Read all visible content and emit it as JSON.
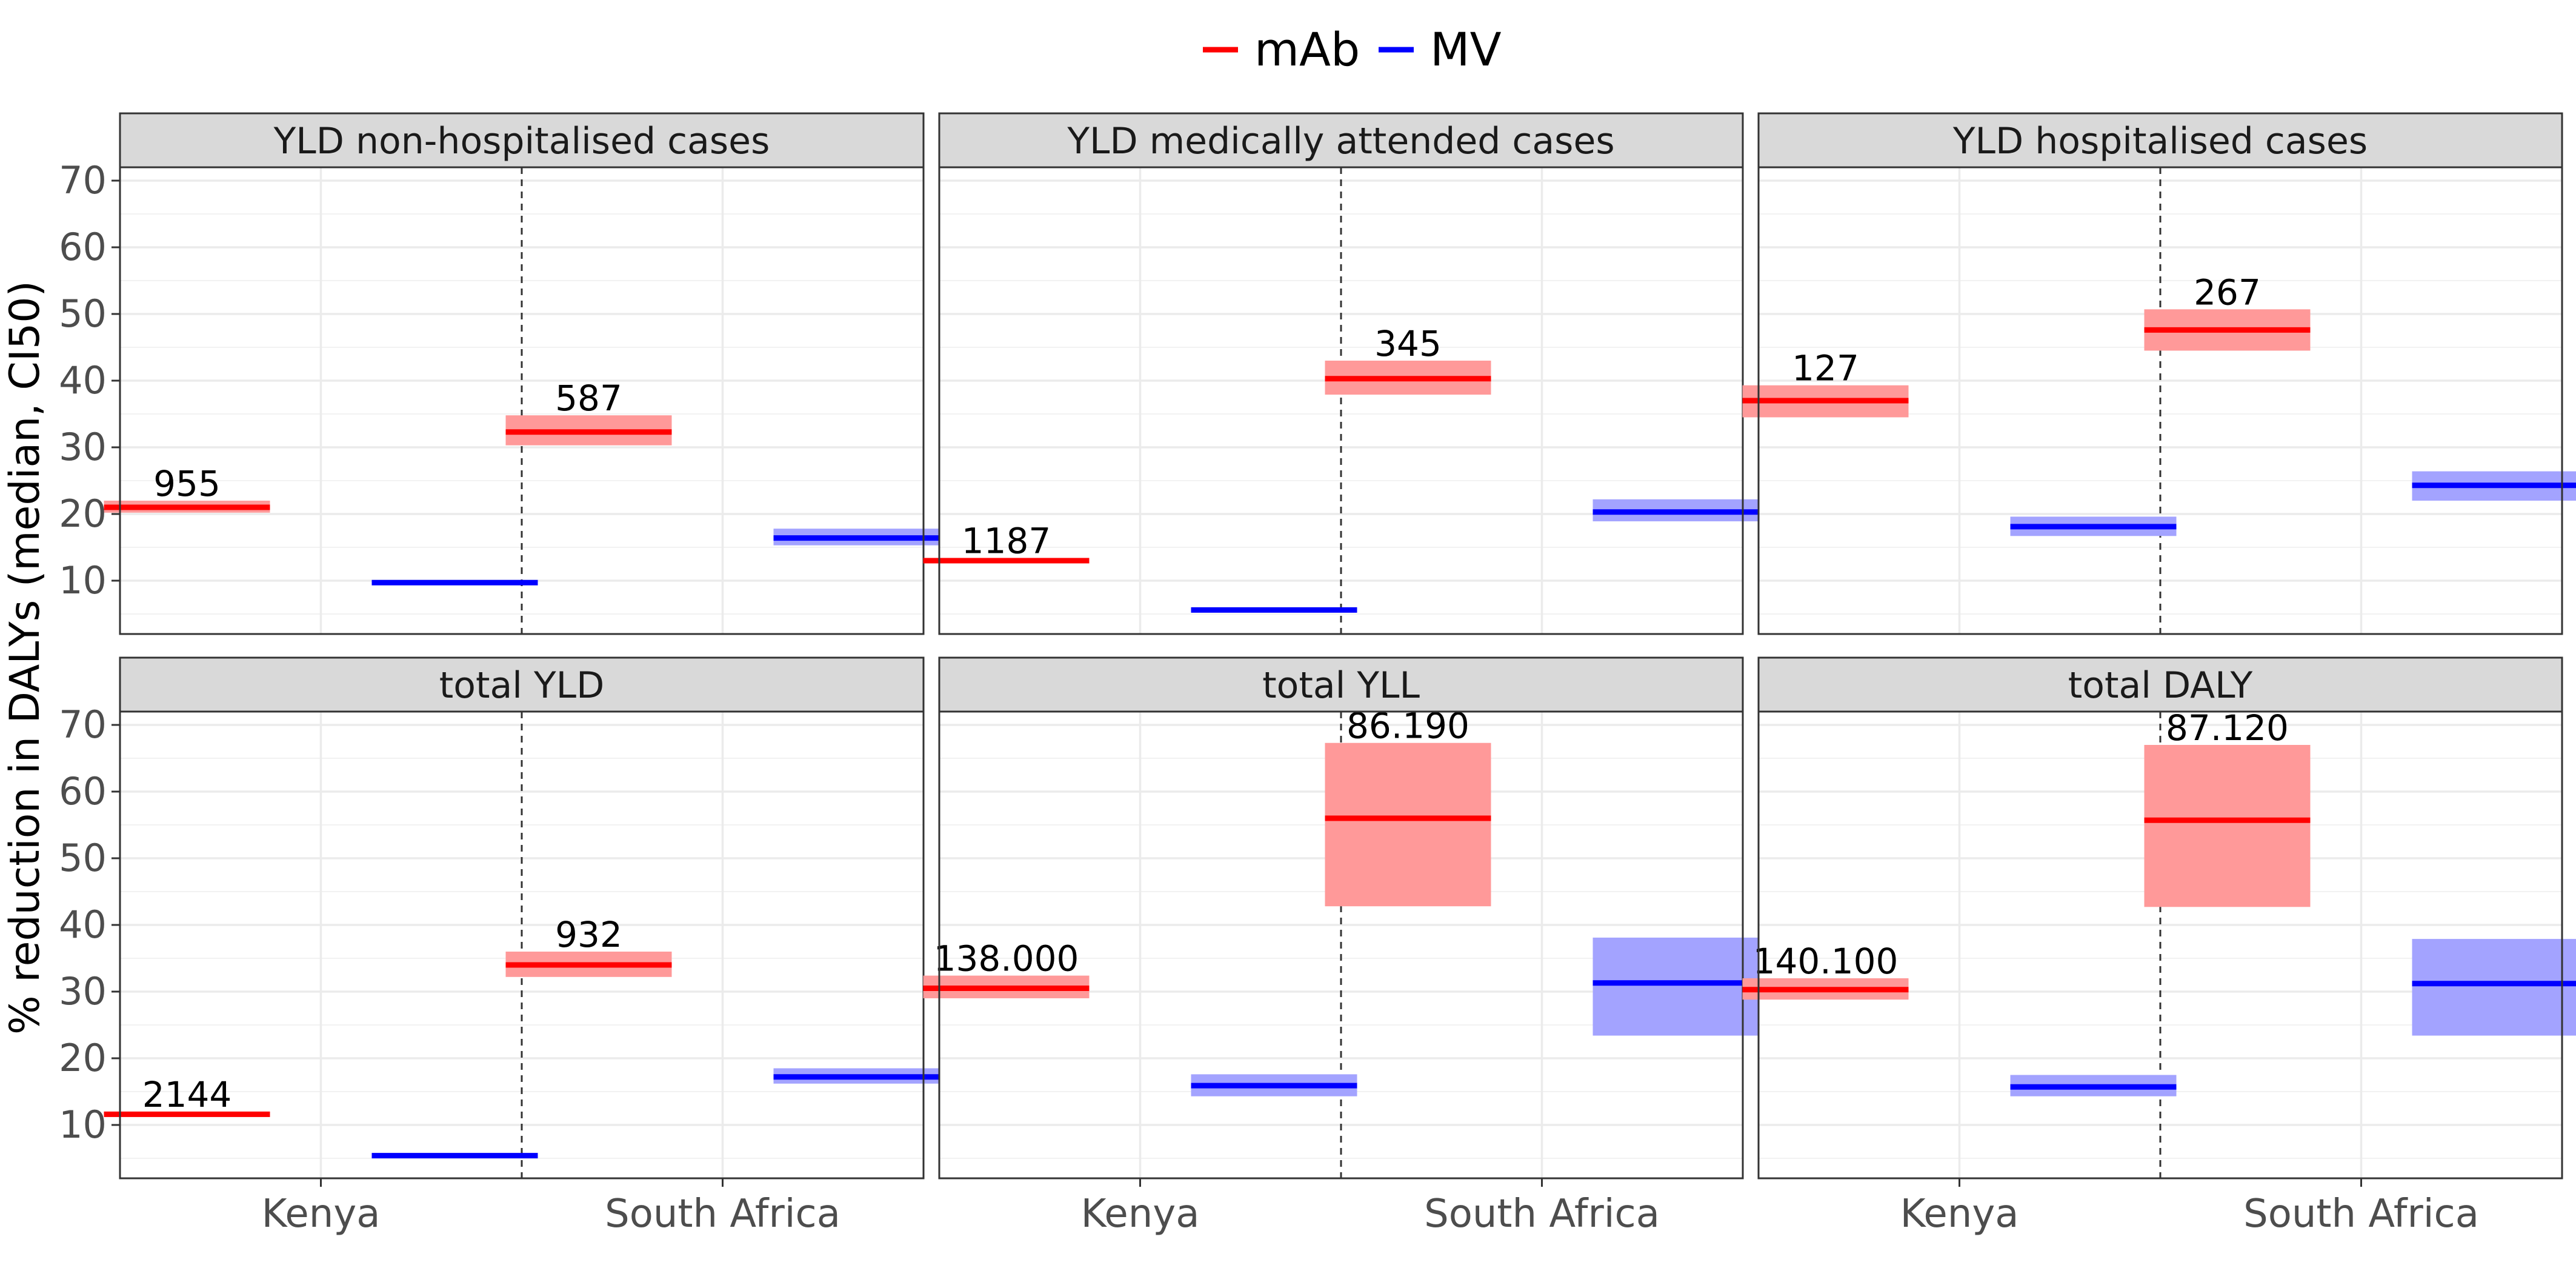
{
  "chart_data": {
    "type": "crossbar",
    "facets": [
      "YLD non-hospitalised cases",
      "YLD medically attended cases",
      "YLD hospitalised cases",
      "total YLD",
      "total YLL",
      "total DALY"
    ],
    "categories": [
      "Kenya",
      "South Africa"
    ],
    "ylabel": "% reduction in DALYs (median, CI50)",
    "xlabel": "",
    "ylim": [
      2,
      72
    ],
    "yticks": [
      10,
      20,
      30,
      40,
      50,
      60,
      70
    ],
    "legend": {
      "position": "top",
      "entries": [
        {
          "label": "mAb",
          "color": "#ff0000"
        },
        {
          "label": "MV",
          "color": "#0000ff"
        }
      ]
    },
    "series_colors": {
      "mAb": "#ff0000",
      "MV": "#0000ff"
    },
    "band_colors": {
      "mAb": "#ff9999",
      "MV": "#a3a3ff"
    },
    "panels": [
      {
        "title": "YLD non-hospitalised cases",
        "points": [
          {
            "country": "Kenya",
            "series": "mAb",
            "median": 21.0,
            "low": 20.2,
            "high": 22.0,
            "label": "955"
          },
          {
            "country": "Kenya",
            "series": "MV",
            "median": 9.7,
            "low": 9.4,
            "high": 10.0
          },
          {
            "country": "South Africa",
            "series": "mAb",
            "median": 32.3,
            "low": 30.3,
            "high": 34.8,
            "label": "587"
          },
          {
            "country": "South Africa",
            "series": "MV",
            "median": 16.4,
            "low": 15.3,
            "high": 17.8
          }
        ]
      },
      {
        "title": "YLD medically attended cases",
        "points": [
          {
            "country": "Kenya",
            "series": "mAb",
            "median": 13.0,
            "low": 12.6,
            "high": 13.4,
            "label": "1187"
          },
          {
            "country": "Kenya",
            "series": "MV",
            "median": 5.6,
            "low": 5.4,
            "high": 5.8
          },
          {
            "country": "South Africa",
            "series": "mAb",
            "median": 40.3,
            "low": 37.9,
            "high": 43.0,
            "label": "345"
          },
          {
            "country": "South Africa",
            "series": "MV",
            "median": 20.3,
            "low": 18.9,
            "high": 22.2
          }
        ]
      },
      {
        "title": "YLD hospitalised cases",
        "points": [
          {
            "country": "Kenya",
            "series": "mAb",
            "median": 37.0,
            "low": 34.5,
            "high": 39.3,
            "label": "127"
          },
          {
            "country": "Kenya",
            "series": "MV",
            "median": 18.1,
            "low": 16.7,
            "high": 19.6
          },
          {
            "country": "South Africa",
            "series": "mAb",
            "median": 47.6,
            "low": 44.5,
            "high": 50.7,
            "label": "267"
          },
          {
            "country": "South Africa",
            "series": "MV",
            "median": 24.3,
            "low": 22.0,
            "high": 26.4
          }
        ]
      },
      {
        "title": "total YLD",
        "points": [
          {
            "country": "Kenya",
            "series": "mAb",
            "median": 11.6,
            "low": 11.2,
            "high": 12.0,
            "label": "2144"
          },
          {
            "country": "Kenya",
            "series": "MV",
            "median": 5.4,
            "low": 5.2,
            "high": 5.6
          },
          {
            "country": "South Africa",
            "series": "mAb",
            "median": 34.0,
            "low": 32.2,
            "high": 36.0,
            "label": "932"
          },
          {
            "country": "South Africa",
            "series": "MV",
            "median": 17.2,
            "low": 16.2,
            "high": 18.5
          }
        ]
      },
      {
        "title": "total YLL",
        "points": [
          {
            "country": "Kenya",
            "series": "mAb",
            "median": 30.5,
            "low": 29.0,
            "high": 32.4,
            "label": "138.000"
          },
          {
            "country": "Kenya",
            "series": "MV",
            "median": 15.9,
            "low": 14.3,
            "high": 17.6
          },
          {
            "country": "South Africa",
            "series": "mAb",
            "median": 56.0,
            "low": 42.8,
            "high": 67.3,
            "label": "86.190"
          },
          {
            "country": "South Africa",
            "series": "MV",
            "median": 31.3,
            "low": 23.4,
            "high": 38.1
          }
        ]
      },
      {
        "title": "total DALY",
        "points": [
          {
            "country": "Kenya",
            "series": "mAb",
            "median": 30.3,
            "low": 28.8,
            "high": 32.0,
            "label": "140.100"
          },
          {
            "country": "Kenya",
            "series": "MV",
            "median": 15.7,
            "low": 14.3,
            "high": 17.5
          },
          {
            "country": "South Africa",
            "series": "mAb",
            "median": 55.7,
            "low": 42.7,
            "high": 67.0,
            "label": "87.120"
          },
          {
            "country": "South Africa",
            "series": "MV",
            "median": 31.2,
            "low": 23.4,
            "high": 37.9
          }
        ]
      }
    ]
  }
}
